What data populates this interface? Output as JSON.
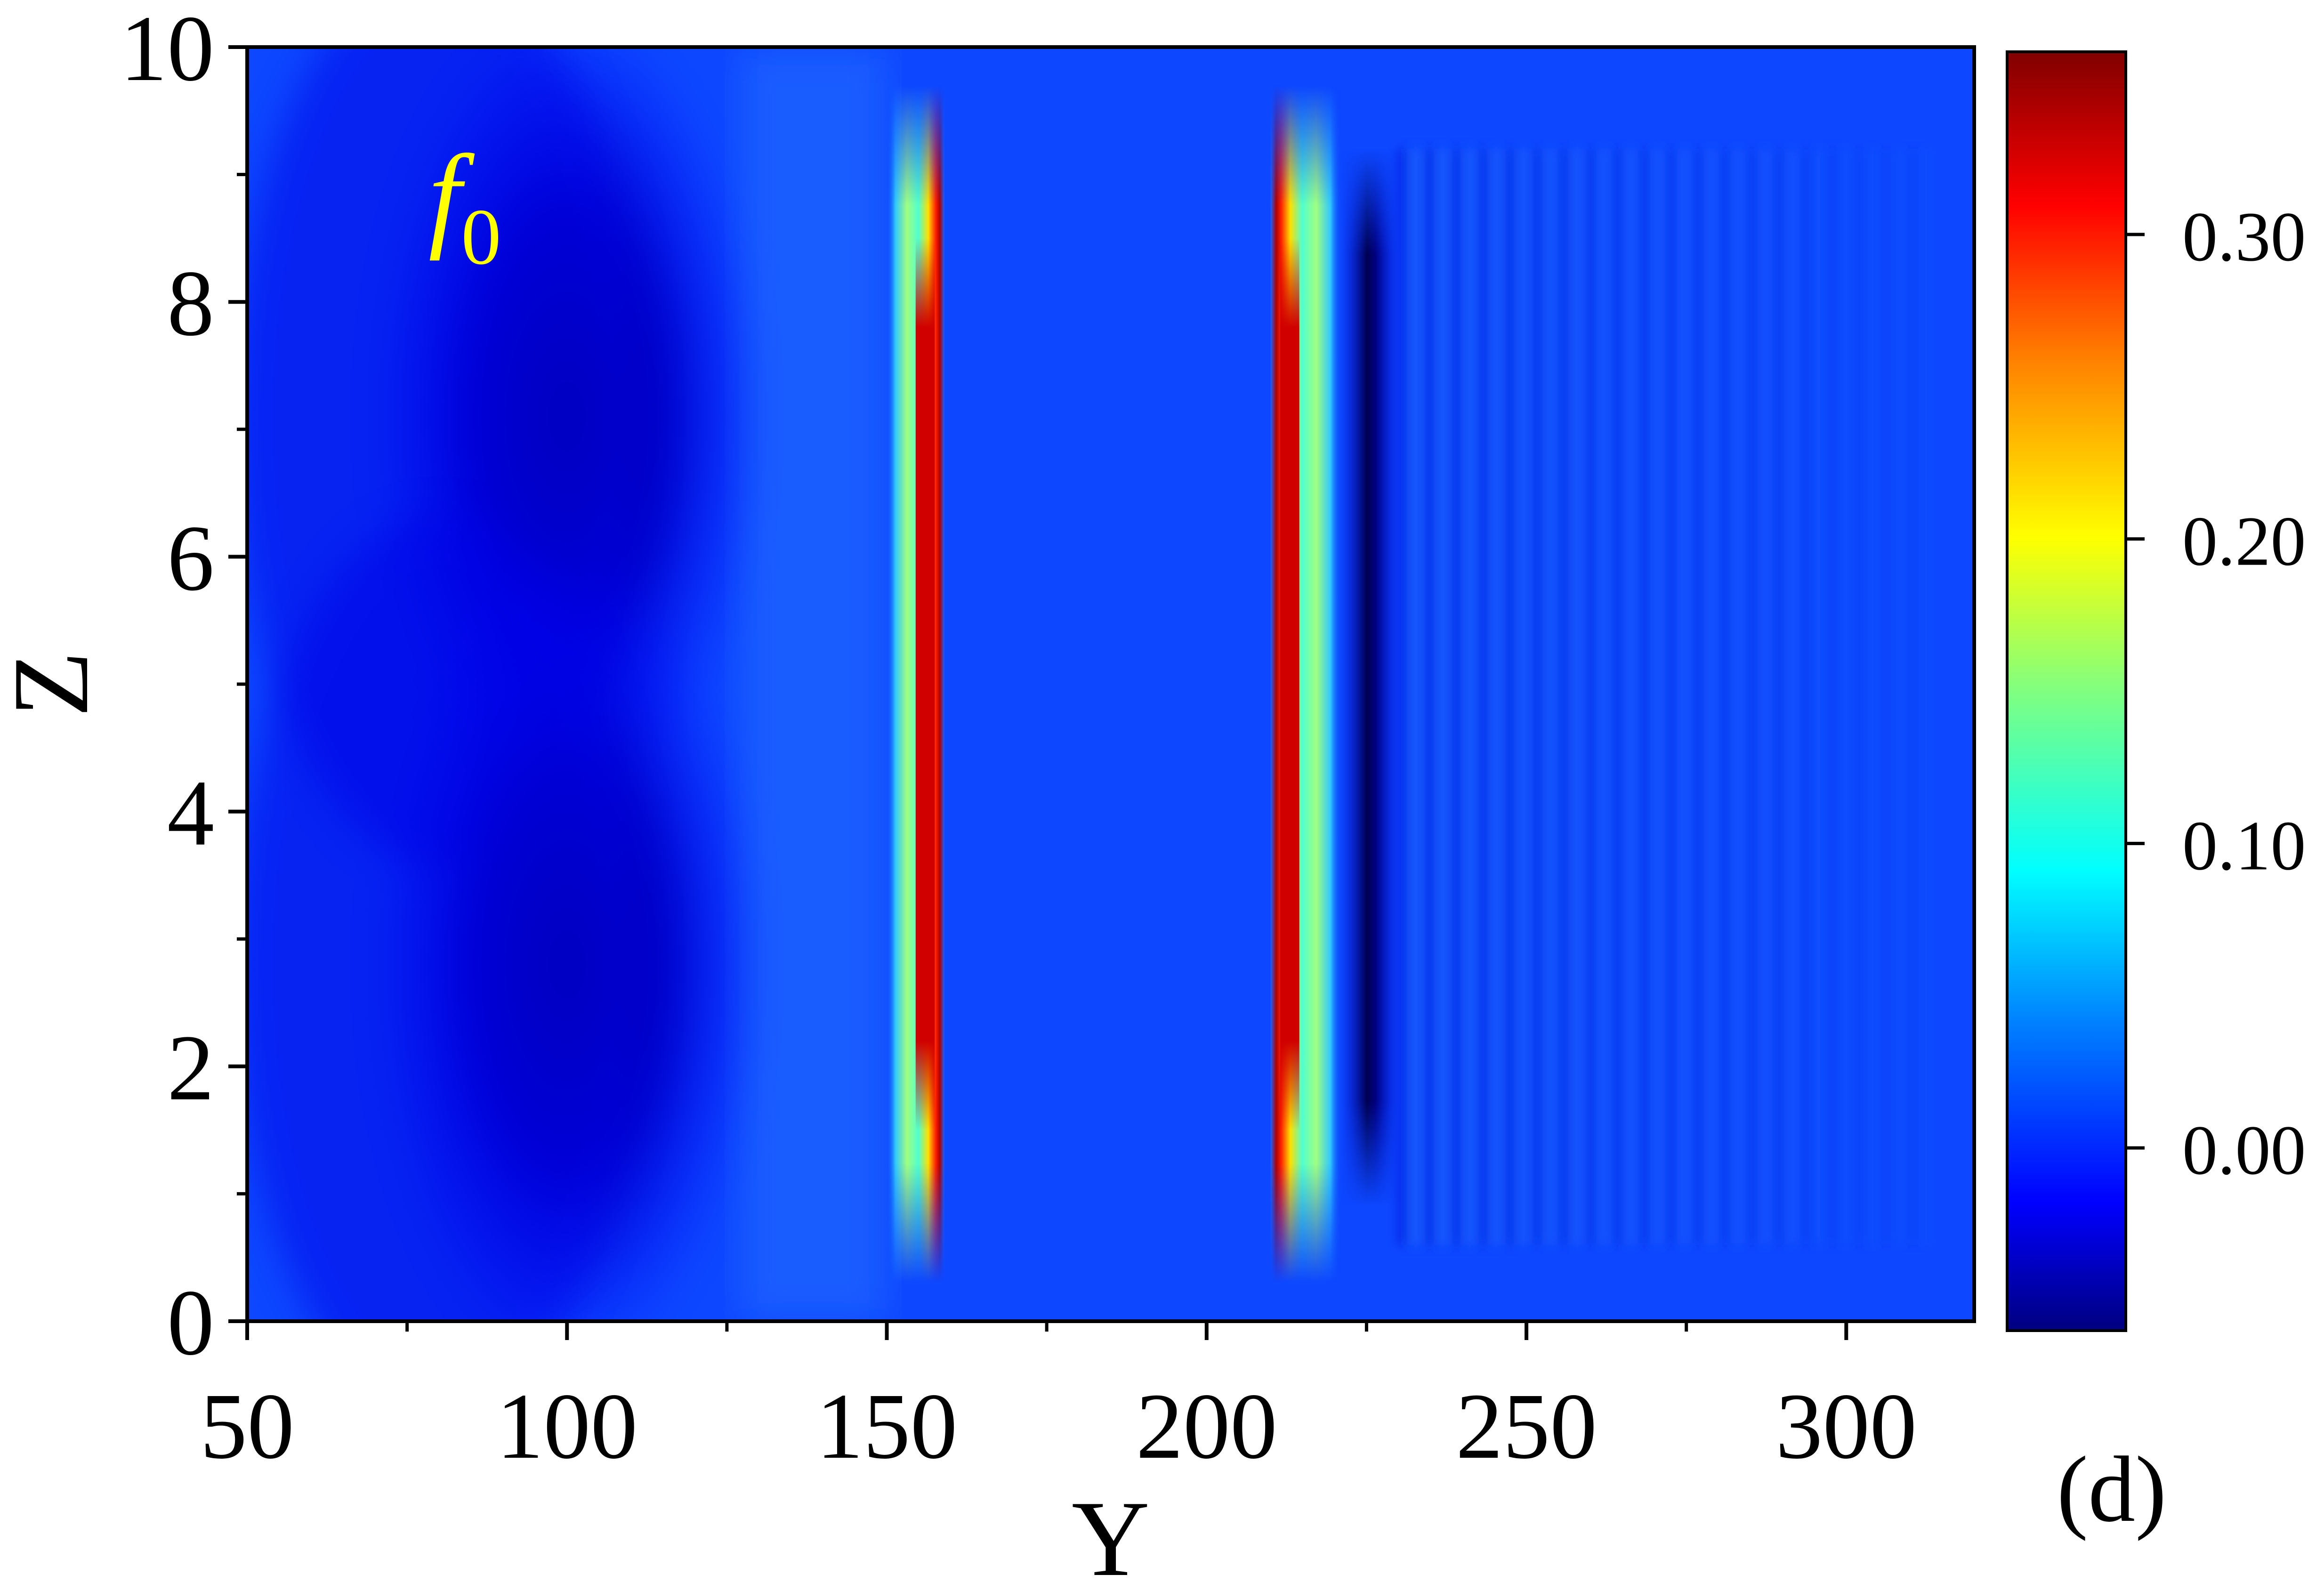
{
  "chart_data": {
    "type": "heatmap",
    "title": "",
    "xlabel": "Y",
    "ylabel": "Z",
    "xlim": [
      50,
      320
    ],
    "ylim": [
      0,
      10
    ],
    "x_ticks": [
      "50",
      "100",
      "150",
      "200",
      "250",
      "300"
    ],
    "y_ticks": [
      "0",
      "2",
      "4",
      "6",
      "8",
      "10"
    ],
    "annotation": {
      "letter": "f",
      "subscript": "0"
    },
    "panel_label": "(d)",
    "colorbar": {
      "range": [
        -0.06,
        0.36
      ],
      "ticks": [
        "0.00",
        "0.10",
        "0.20",
        "0.30"
      ],
      "tick_values": [
        0.0,
        0.1,
        0.2,
        0.3
      ],
      "colormap": [
        "#000080",
        "#0000ff",
        "#0080ff",
        "#00ffff",
        "#80ff80",
        "#ffff00",
        "#ff8000",
        "#ff0000",
        "#800000"
      ]
    },
    "background_value": 0.0,
    "features": [
      {
        "kind": "low_region",
        "y_center": 100,
        "z_center": 7.1,
        "value": -0.03
      },
      {
        "kind": "low_region",
        "y_center": 100,
        "z_center": 2.8,
        "value": -0.03
      },
      {
        "kind": "high_band",
        "y_center": 158,
        "z_range": [
          1.5,
          8.5
        ],
        "value": 0.35
      },
      {
        "kind": "high_band",
        "y_center": 211,
        "z_range": [
          1.5,
          8.5
        ],
        "value": 0.35
      },
      {
        "kind": "low_band",
        "y_center": 225,
        "z_range": [
          1.5,
          8.8
        ],
        "value": -0.06
      },
      {
        "kind": "ripples",
        "y_range": [
          230,
          310
        ],
        "value_range": [
          -0.02,
          0.03
        ]
      }
    ]
  }
}
